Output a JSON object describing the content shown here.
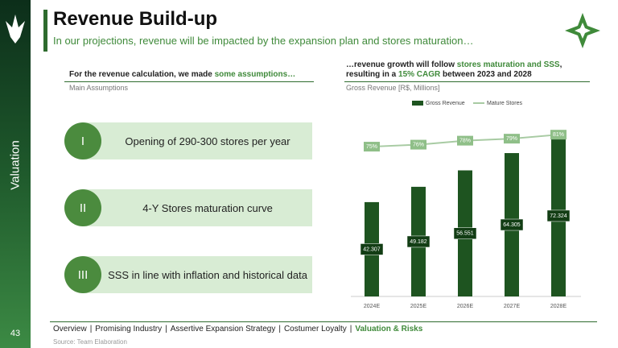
{
  "title": "Revenue Build-up",
  "subtitle": "In our projections, revenue will be impacted by the expansion plan and stores maturation…",
  "section": "Valuation",
  "page_number": "43",
  "left": {
    "heading": [
      "For the revenue calculation, we made ",
      "some assumptions…"
    ],
    "label": "Main Assumptions",
    "items": [
      {
        "numeral": "I",
        "text": "Opening of 290-300 stores per year"
      },
      {
        "numeral": "II",
        "text": "4-Y Stores maturation curve"
      },
      {
        "numeral": "III",
        "text": "SSS in line with inflation and historical data"
      }
    ]
  },
  "right": {
    "heading": [
      "…revenue growth will follow ",
      "stores maturation and SSS",
      ", resulting in a ",
      "15% CAGR",
      " between 2023 and 2028"
    ],
    "label": "Gross Revenue [R$, Millions]"
  },
  "chart_data": {
    "type": "bar",
    "categories": [
      "2024E",
      "2025E",
      "2026E",
      "2027E",
      "2028E"
    ],
    "series": [
      {
        "name": "Gross Revenue",
        "type": "bar",
        "color": "#1e5420",
        "values": [
          42307,
          49182,
          56551,
          64305,
          72324
        ],
        "value_labels": [
          "42.307",
          "49.182",
          "56.551",
          "64.305",
          "72.324"
        ]
      },
      {
        "name": "Mature Stores",
        "type": "line",
        "axis": "y2",
        "color": "#a8cba3",
        "values": [
          75,
          76,
          78,
          79,
          81
        ],
        "value_labels": [
          "75%",
          "76%",
          "78%",
          "79%",
          "81%"
        ]
      }
    ],
    "ylim": [
      0,
      86000
    ],
    "y2lim": [
      0,
      96
    ],
    "grid": false
  },
  "nav": {
    "items": [
      "Overview",
      "Promising Industry",
      "Assertive Expansion Strategy",
      "Costumer Loyalty",
      "Valuation & Risks"
    ],
    "separator": "|"
  },
  "source": "Source: Team Elaboration"
}
